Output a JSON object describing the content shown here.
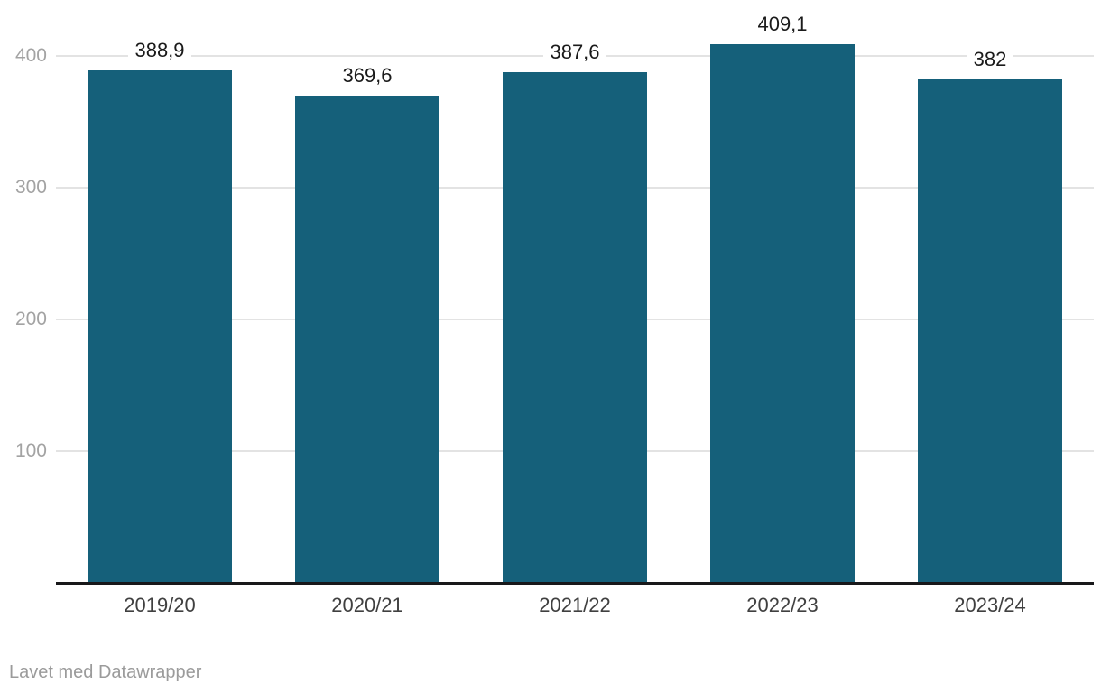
{
  "chart_data": {
    "type": "bar",
    "categories": [
      "2019/20",
      "2020/21",
      "2021/22",
      "2022/23",
      "2023/24"
    ],
    "values": [
      388.9,
      369.6,
      387.6,
      409.1,
      382
    ],
    "value_labels": [
      "388,9",
      "369,6",
      "387,6",
      "409,1",
      "382"
    ],
    "title": "",
    "xlabel": "",
    "ylabel": "",
    "ylim": [
      0,
      442
    ],
    "yticks": [
      100,
      200,
      300,
      400
    ],
    "ytick_labels": [
      "100",
      "200",
      "300",
      "400"
    ],
    "grid": "horizontal",
    "legend": "none"
  },
  "colors": {
    "background": "#ffffff",
    "bar": "#15607a",
    "grid": "#e3e3e3",
    "axis": "#18181a",
    "ytick_label": "#a3a3a3",
    "xtick_label": "#404040",
    "value_label": "#1a1a1a",
    "footer": "#9b9b9b"
  },
  "footer": {
    "attribution": "Lavet med Datawrapper"
  }
}
